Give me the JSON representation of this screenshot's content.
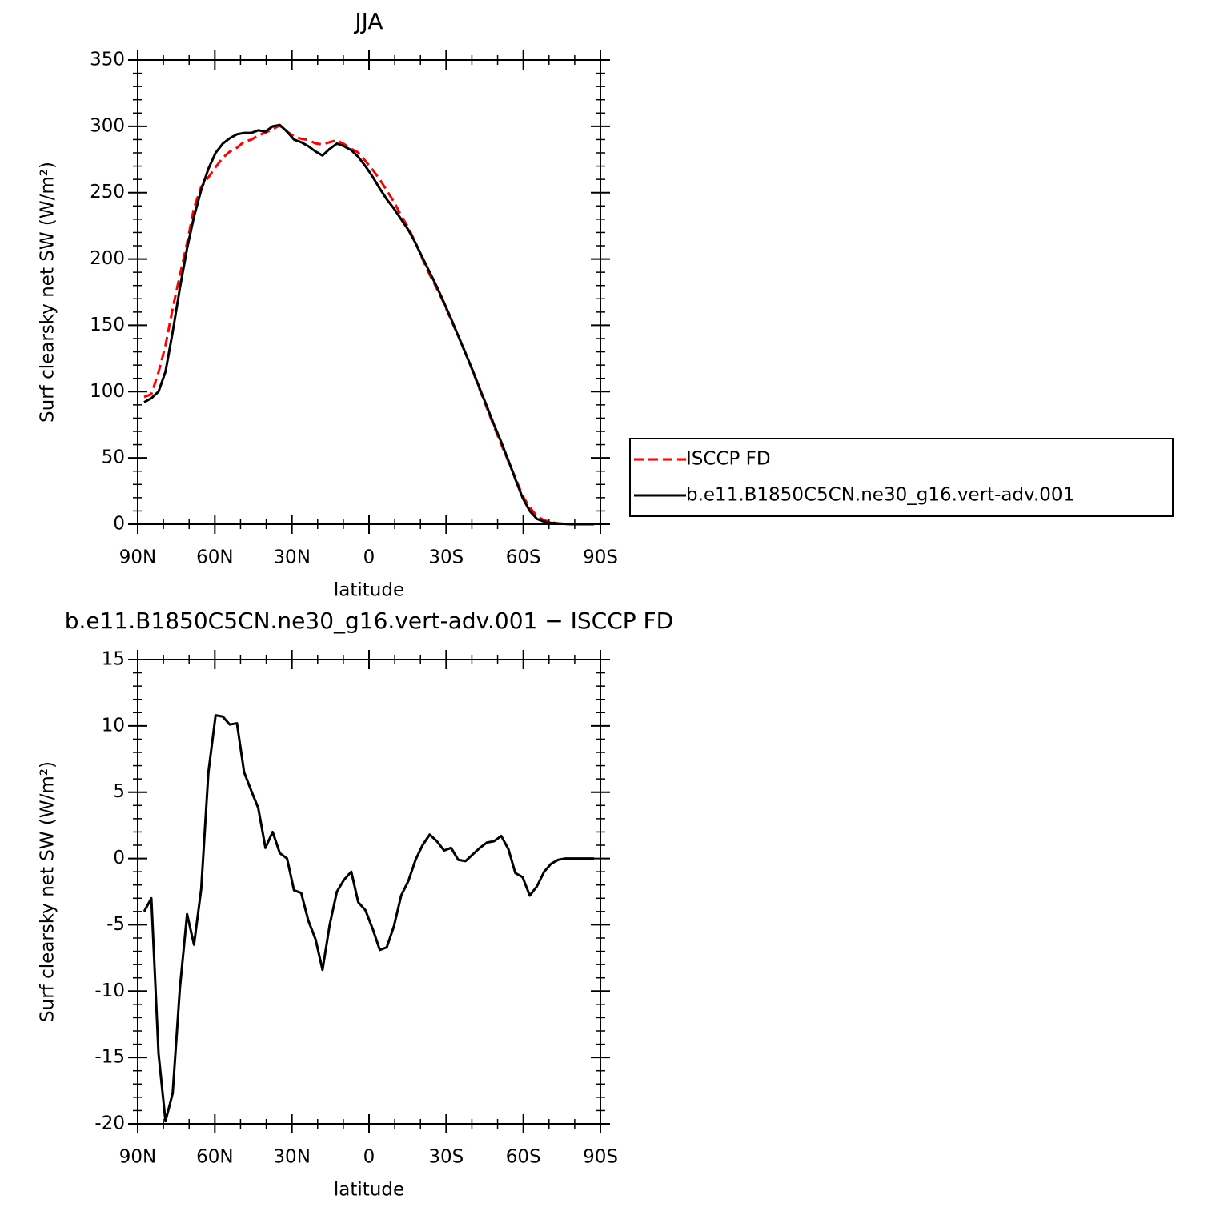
{
  "chart_data": [
    {
      "type": "line",
      "title": "JJA",
      "x_label": "latitude",
      "y_label": "Surf clearsky net SW (W/m²)",
      "x": [
        87.5,
        84.7,
        81.9,
        79.2,
        76.4,
        73.6,
        70.8,
        68.1,
        65.3,
        62.5,
        59.7,
        56.9,
        54.2,
        51.4,
        48.6,
        45.8,
        43.1,
        40.3,
        37.5,
        34.7,
        31.9,
        29.2,
        26.4,
        23.6,
        20.8,
        18.1,
        15.3,
        12.5,
        9.7,
        6.9,
        4.2,
        1.4,
        -1.4,
        -4.2,
        -6.9,
        -9.7,
        -12.5,
        -15.3,
        -18.1,
        -20.8,
        -23.6,
        -26.4,
        -29.2,
        -31.9,
        -34.7,
        -37.5,
        -40.3,
        -43.1,
        -45.8,
        -48.6,
        -51.4,
        -54.2,
        -56.9,
        -59.7,
        -62.5,
        -65.3,
        -68.1,
        -70.8,
        -73.6,
        -76.4,
        -79.2,
        -81.9,
        -84.7,
        -87.5
      ],
      "series": [
        {
          "name": "ISCCP FD",
          "color": "#ff0000",
          "line_style": "dashed",
          "values": [
            96,
            98,
            114.7,
            134.8,
            162.7,
            187.8,
            212.2,
            238.5,
            254.3,
            261.5,
            269.2,
            276.3,
            280.9,
            283.8,
            288.5,
            289.9,
            293.2,
            295.2,
            298,
            300.6,
            296,
            292.4,
            290.6,
            289.7,
            287.1,
            286.4,
            288,
            289.5,
            286.6,
            283,
            280.3,
            273.9,
            267.3,
            259.9,
            251.7,
            243.1,
            232.8,
            223.7,
            212.1,
            200,
            188.2,
            177.7,
            166.4,
            154.2,
            142.1,
            129.2,
            115.7,
            101.2,
            87.8,
            73.7,
            60.3,
            47.3,
            35.1,
            21.4,
            12.8,
            6.1,
            3,
            1.4,
            0.6,
            0.2,
            0,
            0,
            0,
            0
          ]
        },
        {
          "name": "b.e11.B1850C5CN.ne30_g16.vert-adv.001",
          "color": "#000000",
          "line_style": "solid",
          "values": [
            92,
            95,
            100,
            115,
            145,
            178,
            208,
            232,
            252,
            268,
            280,
            287,
            291,
            294,
            295,
            295,
            297,
            296,
            300,
            301,
            296,
            290,
            288,
            285,
            281,
            278,
            283,
            287,
            285,
            282,
            277,
            270,
            262,
            253,
            245,
            238,
            230,
            222,
            212,
            201,
            190,
            179,
            167,
            155,
            142,
            129,
            116,
            102,
            89,
            75,
            62,
            48,
            34,
            20,
            10,
            4,
            2,
            1,
            0.5,
            0.2,
            0,
            0,
            0,
            0
          ]
        }
      ],
      "xlim": [
        90,
        -90
      ],
      "xticks": [
        {
          "value": 90,
          "label": "90N"
        },
        {
          "value": 60,
          "label": "60N"
        },
        {
          "value": 30,
          "label": "30N"
        },
        0,
        {
          "value": -30,
          "label": "30S"
        },
        {
          "value": -60,
          "label": "60S"
        },
        {
          "value": -90,
          "label": "90S"
        }
      ],
      "ylim": [
        0,
        350
      ],
      "yticks": [
        0,
        50,
        100,
        150,
        200,
        250,
        300,
        350
      ],
      "legend": "right"
    },
    {
      "type": "line",
      "title": "b.e11.B1850C5CN.ne30_g16.vert-adv.001 − ISCCP FD",
      "x_label": "latitude",
      "y_label": "Surf clearsky net SW (W/m²)",
      "x": [
        87.5,
        84.7,
        81.9,
        79.2,
        76.4,
        73.6,
        70.8,
        68.1,
        65.3,
        62.5,
        59.7,
        56.9,
        54.2,
        51.4,
        48.6,
        45.8,
        43.1,
        40.3,
        37.5,
        34.7,
        31.9,
        29.2,
        26.4,
        23.6,
        20.8,
        18.1,
        15.3,
        12.5,
        9.7,
        6.9,
        4.2,
        1.4,
        -1.4,
        -4.2,
        -6.9,
        -9.7,
        -12.5,
        -15.3,
        -18.1,
        -20.8,
        -23.6,
        -26.4,
        -29.2,
        -31.9,
        -34.7,
        -37.5,
        -40.3,
        -43.1,
        -45.8,
        -48.6,
        -51.4,
        -54.2,
        -56.9,
        -59.7,
        -62.5,
        -65.3,
        -68.1,
        -70.8,
        -73.6,
        -76.4,
        -79.2,
        -81.9,
        -84.7,
        -87.5
      ],
      "series": [
        {
          "color": "#000000",
          "line_style": "solid",
          "values": [
            -4,
            -3,
            -14.7,
            -19.8,
            -17.7,
            -9.8,
            -4.2,
            -6.5,
            -2.3,
            6.5,
            10.8,
            10.7,
            10.1,
            10.2,
            6.5,
            5.1,
            3.8,
            0.8,
            2,
            0.4,
            0,
            -2.4,
            -2.6,
            -4.7,
            -6.1,
            -8.4,
            -5,
            -2.5,
            -1.6,
            -1,
            -3.3,
            -3.9,
            -5.3,
            -6.9,
            -6.7,
            -5.1,
            -2.8,
            -1.7,
            -0.1,
            1,
            1.8,
            1.3,
            0.6,
            0.8,
            -0.1,
            -0.2,
            0.3,
            0.8,
            1.2,
            1.3,
            1.7,
            0.7,
            -1.1,
            -1.4,
            -2.8,
            -2.1,
            -1,
            -0.4,
            -0.1,
            0,
            0,
            0,
            0,
            0
          ]
        }
      ],
      "xlim": [
        90,
        -90
      ],
      "xticks": [
        {
          "value": 90,
          "label": "90N"
        },
        {
          "value": 60,
          "label": "60N"
        },
        {
          "value": 30,
          "label": "30N"
        },
        0,
        {
          "value": -30,
          "label": "30S"
        },
        {
          "value": -60,
          "label": "60S"
        },
        {
          "value": -90,
          "label": "90S"
        }
      ],
      "ylim": [
        -20,
        15
      ],
      "yticks": [
        -20,
        -15,
        -10,
        -5,
        0,
        5,
        10,
        15
      ]
    }
  ]
}
